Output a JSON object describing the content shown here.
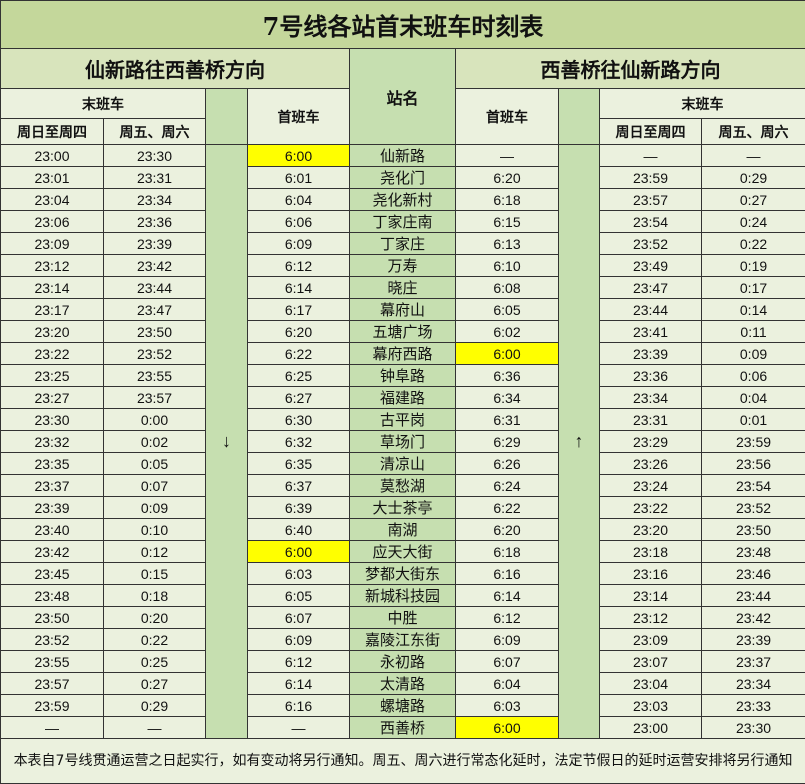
{
  "title": "7号线各站首末班车时刻表",
  "dir_left": "仙新路往西善桥方向",
  "dir_right": "西善桥往仙新路方向",
  "station_header": "站名",
  "last_train": "末班车",
  "first_train": "首班车",
  "sun_thu": "周日至周四",
  "fri_sat": "周五、周六",
  "arrow_down": "↓",
  "arrow_up": "↑",
  "highlight_color": "#ffff00",
  "rows": [
    {
      "station": "仙新路",
      "l_last_st": "23:00",
      "l_last_fs": "23:30",
      "l_first": "6:00",
      "l_hl": true,
      "r_first": "—",
      "r_last_st": "—",
      "r_last_fs": "—"
    },
    {
      "station": "尧化门",
      "l_last_st": "23:01",
      "l_last_fs": "23:31",
      "l_first": "6:01",
      "r_first": "6:20",
      "r_last_st": "23:59",
      "r_last_fs": "0:29"
    },
    {
      "station": "尧化新村",
      "l_last_st": "23:04",
      "l_last_fs": "23:34",
      "l_first": "6:04",
      "r_first": "6:18",
      "r_last_st": "23:57",
      "r_last_fs": "0:27"
    },
    {
      "station": "丁家庄南",
      "l_last_st": "23:06",
      "l_last_fs": "23:36",
      "l_first": "6:06",
      "r_first": "6:15",
      "r_last_st": "23:54",
      "r_last_fs": "0:24"
    },
    {
      "station": "丁家庄",
      "l_last_st": "23:09",
      "l_last_fs": "23:39",
      "l_first": "6:09",
      "r_first": "6:13",
      "r_last_st": "23:52",
      "r_last_fs": "0:22"
    },
    {
      "station": "万寿",
      "l_last_st": "23:12",
      "l_last_fs": "23:42",
      "l_first": "6:12",
      "r_first": "6:10",
      "r_last_st": "23:49",
      "r_last_fs": "0:19"
    },
    {
      "station": "晓庄",
      "l_last_st": "23:14",
      "l_last_fs": "23:44",
      "l_first": "6:14",
      "r_first": "6:08",
      "r_last_st": "23:47",
      "r_last_fs": "0:17"
    },
    {
      "station": "幕府山",
      "l_last_st": "23:17",
      "l_last_fs": "23:47",
      "l_first": "6:17",
      "r_first": "6:05",
      "r_last_st": "23:44",
      "r_last_fs": "0:14"
    },
    {
      "station": "五塘广场",
      "l_last_st": "23:20",
      "l_last_fs": "23:50",
      "l_first": "6:20",
      "r_first": "6:02",
      "r_last_st": "23:41",
      "r_last_fs": "0:11"
    },
    {
      "station": "幕府西路",
      "l_last_st": "23:22",
      "l_last_fs": "23:52",
      "l_first": "6:22",
      "r_first": "6:00",
      "r_hl": true,
      "r_last_st": "23:39",
      "r_last_fs": "0:09"
    },
    {
      "station": "钟阜路",
      "l_last_st": "23:25",
      "l_last_fs": "23:55",
      "l_first": "6:25",
      "r_first": "6:36",
      "r_last_st": "23:36",
      "r_last_fs": "0:06"
    },
    {
      "station": "福建路",
      "l_last_st": "23:27",
      "l_last_fs": "23:57",
      "l_first": "6:27",
      "r_first": "6:34",
      "r_last_st": "23:34",
      "r_last_fs": "0:04"
    },
    {
      "station": "古平岗",
      "l_last_st": "23:30",
      "l_last_fs": "0:00",
      "l_first": "6:30",
      "r_first": "6:31",
      "r_last_st": "23:31",
      "r_last_fs": "0:01"
    },
    {
      "station": "草场门",
      "l_last_st": "23:32",
      "l_last_fs": "0:02",
      "l_first": "6:32",
      "r_first": "6:29",
      "r_last_st": "23:29",
      "r_last_fs": "23:59"
    },
    {
      "station": "清凉山",
      "l_last_st": "23:35",
      "l_last_fs": "0:05",
      "l_first": "6:35",
      "r_first": "6:26",
      "r_last_st": "23:26",
      "r_last_fs": "23:56"
    },
    {
      "station": "莫愁湖",
      "l_last_st": "23:37",
      "l_last_fs": "0:07",
      "l_first": "6:37",
      "r_first": "6:24",
      "r_last_st": "23:24",
      "r_last_fs": "23:54"
    },
    {
      "station": "大士茶亭",
      "l_last_st": "23:39",
      "l_last_fs": "0:09",
      "l_first": "6:39",
      "r_first": "6:22",
      "r_last_st": "23:22",
      "r_last_fs": "23:52"
    },
    {
      "station": "南湖",
      "l_last_st": "23:40",
      "l_last_fs": "0:10",
      "l_first": "6:40",
      "r_first": "6:20",
      "r_last_st": "23:20",
      "r_last_fs": "23:50"
    },
    {
      "station": "应天大街",
      "l_last_st": "23:42",
      "l_last_fs": "0:12",
      "l_first": "6:00",
      "l_hl": true,
      "r_first": "6:18",
      "r_last_st": "23:18",
      "r_last_fs": "23:48"
    },
    {
      "station": "梦都大街东",
      "l_last_st": "23:45",
      "l_last_fs": "0:15",
      "l_first": "6:03",
      "r_first": "6:16",
      "r_last_st": "23:16",
      "r_last_fs": "23:46"
    },
    {
      "station": "新城科技园",
      "l_last_st": "23:48",
      "l_last_fs": "0:18",
      "l_first": "6:05",
      "r_first": "6:14",
      "r_last_st": "23:14",
      "r_last_fs": "23:44"
    },
    {
      "station": "中胜",
      "l_last_st": "23:50",
      "l_last_fs": "0:20",
      "l_first": "6:07",
      "r_first": "6:12",
      "r_last_st": "23:12",
      "r_last_fs": "23:42"
    },
    {
      "station": "嘉陵江东街",
      "l_last_st": "23:52",
      "l_last_fs": "0:22",
      "l_first": "6:09",
      "r_first": "6:09",
      "r_last_st": "23:09",
      "r_last_fs": "23:39"
    },
    {
      "station": "永初路",
      "l_last_st": "23:55",
      "l_last_fs": "0:25",
      "l_first": "6:12",
      "r_first": "6:07",
      "r_last_st": "23:07",
      "r_last_fs": "23:37"
    },
    {
      "station": "太清路",
      "l_last_st": "23:57",
      "l_last_fs": "0:27",
      "l_first": "6:14",
      "r_first": "6:04",
      "r_last_st": "23:04",
      "r_last_fs": "23:34"
    },
    {
      "station": "螺塘路",
      "l_last_st": "23:59",
      "l_last_fs": "0:29",
      "l_first": "6:16",
      "r_first": "6:03",
      "r_last_st": "23:03",
      "r_last_fs": "23:33"
    },
    {
      "station": "西善桥",
      "l_last_st": "—",
      "l_last_fs": "—",
      "l_first": "—",
      "r_first": "6:00",
      "r_hl": true,
      "r_last_st": "23:00",
      "r_last_fs": "23:30"
    }
  ],
  "footnote": "本表自7号线贯通运营之日起实行，如有变动将另行通知。周五、周六进行常态化延时，法定节假日的延时运营安排将另行通知"
}
